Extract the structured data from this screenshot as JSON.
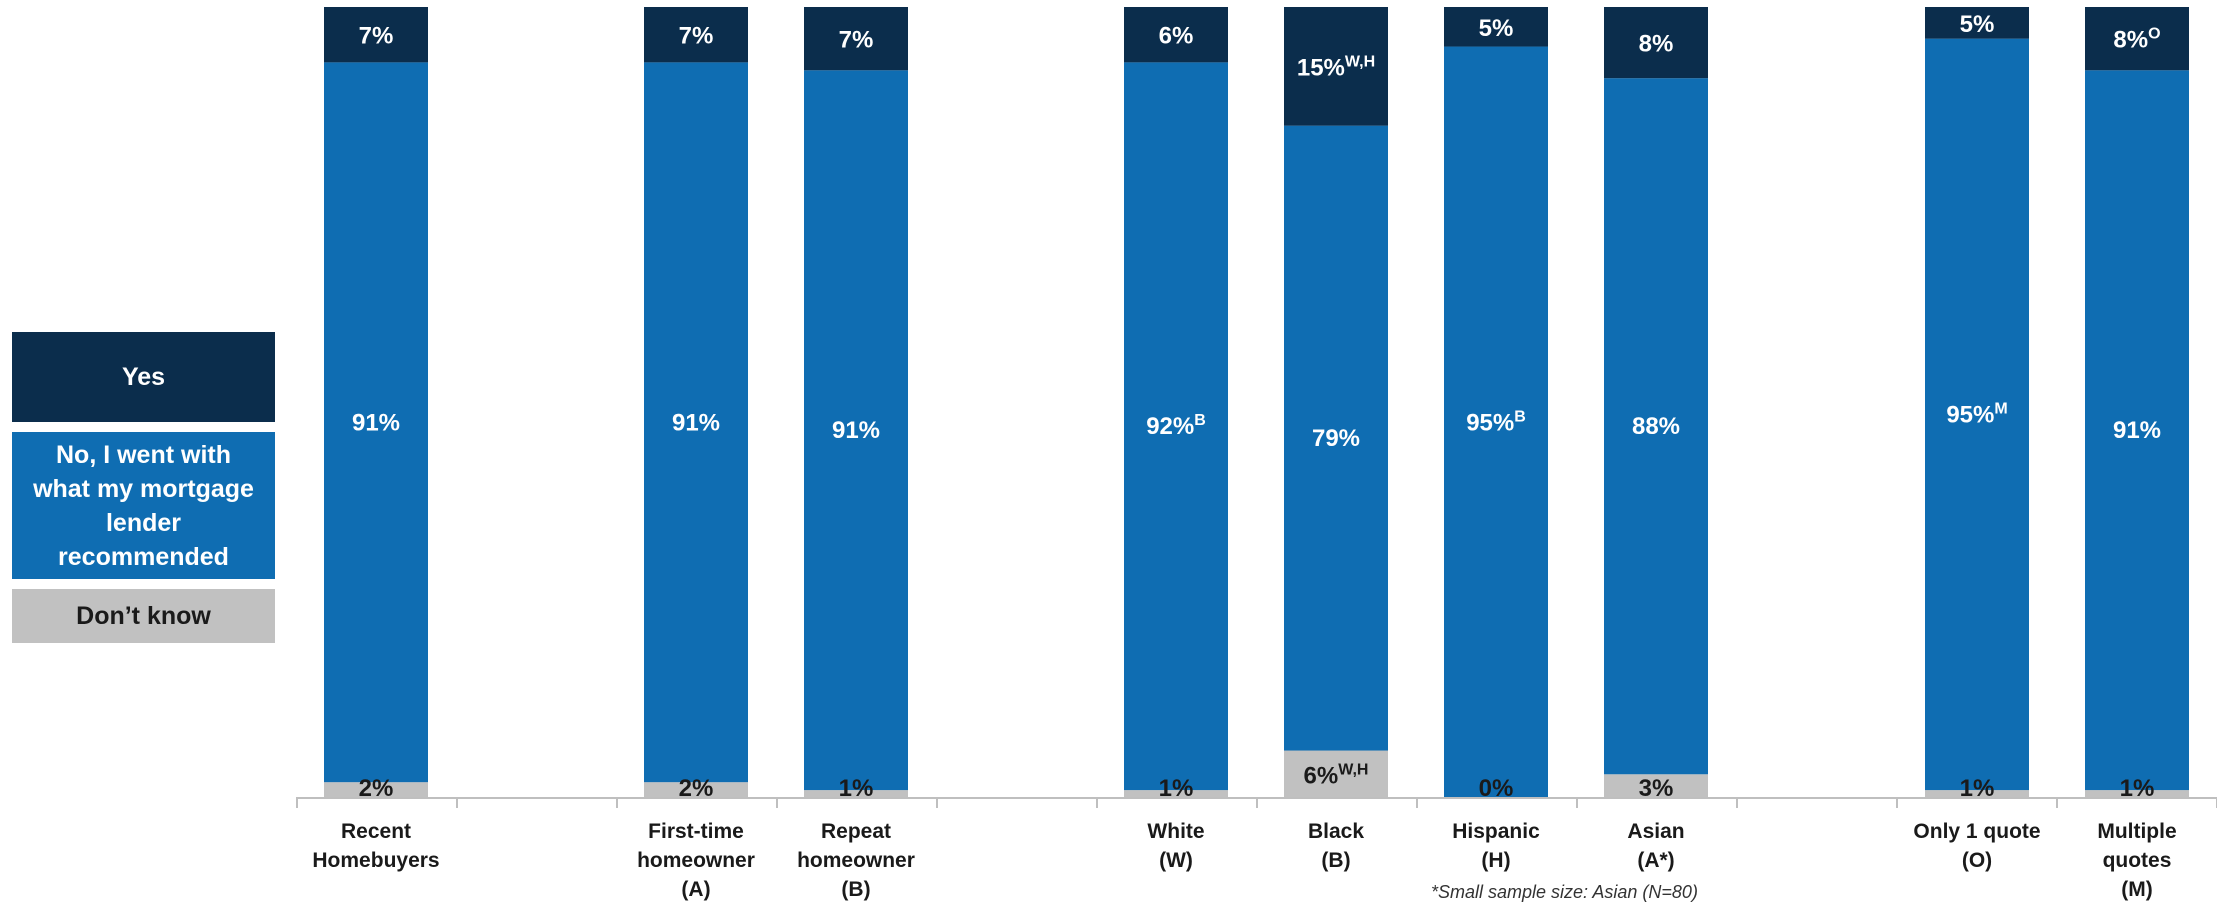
{
  "colors": {
    "yes": "#0b2d4c",
    "no": "#0f6db2",
    "dont_know": "#c1c1c1"
  },
  "legend": {
    "yes": "Yes",
    "no": "No, I went with what my mortgage lender recommended",
    "dont_know": "Don’t know"
  },
  "footnote": "*Small sample size: Asian (N=80)",
  "chart_data": {
    "type": "bar",
    "stacked": true,
    "categories": [
      [
        "Recent",
        "Homebuyers"
      ],
      [
        "First-time",
        "homeowner",
        "(A)"
      ],
      [
        "Repeat",
        "homeowner",
        "(B)"
      ],
      [
        "White",
        "(W)"
      ],
      [
        "Black",
        "(B)"
      ],
      [
        "Hispanic",
        "(H)"
      ],
      [
        "Asian",
        "(A*)"
      ],
      [
        "Only 1 quote",
        "(O)"
      ],
      [
        "Multiple",
        "quotes",
        "(M)"
      ]
    ],
    "series": [
      {
        "name": "Don’t know",
        "values": [
          2,
          2,
          1,
          1,
          6,
          0,
          3,
          1,
          1
        ],
        "labels": [
          "2%",
          "2%",
          "1%",
          "1%",
          "6%",
          "0%",
          "3%",
          "1%",
          "1%"
        ],
        "sup": [
          "",
          "",
          "",
          "",
          "W,H",
          "",
          "",
          "",
          ""
        ]
      },
      {
        "name": "No, I went with what my mortgage lender recommended",
        "values": [
          91,
          91,
          91,
          92,
          79,
          95,
          88,
          95,
          91
        ],
        "labels": [
          "91%",
          "91%",
          "91%",
          "92%",
          "79%",
          "95%",
          "88%",
          "95%",
          "91%"
        ],
        "sup": [
          "",
          "",
          "",
          "B",
          "",
          "B",
          "",
          "M",
          ""
        ]
      },
      {
        "name": "Yes",
        "values": [
          7,
          7,
          7,
          6,
          15,
          5,
          8,
          5,
          8
        ],
        "labels": [
          "7%",
          "7%",
          "7%",
          "6%",
          "15%",
          "5%",
          "8%",
          "5%",
          "8%"
        ],
        "sup": [
          "",
          "",
          "",
          "",
          "W,H",
          "",
          "",
          "",
          "O"
        ]
      }
    ],
    "ylim": [
      0,
      100
    ],
    "grid": false,
    "legend_position": "left"
  }
}
